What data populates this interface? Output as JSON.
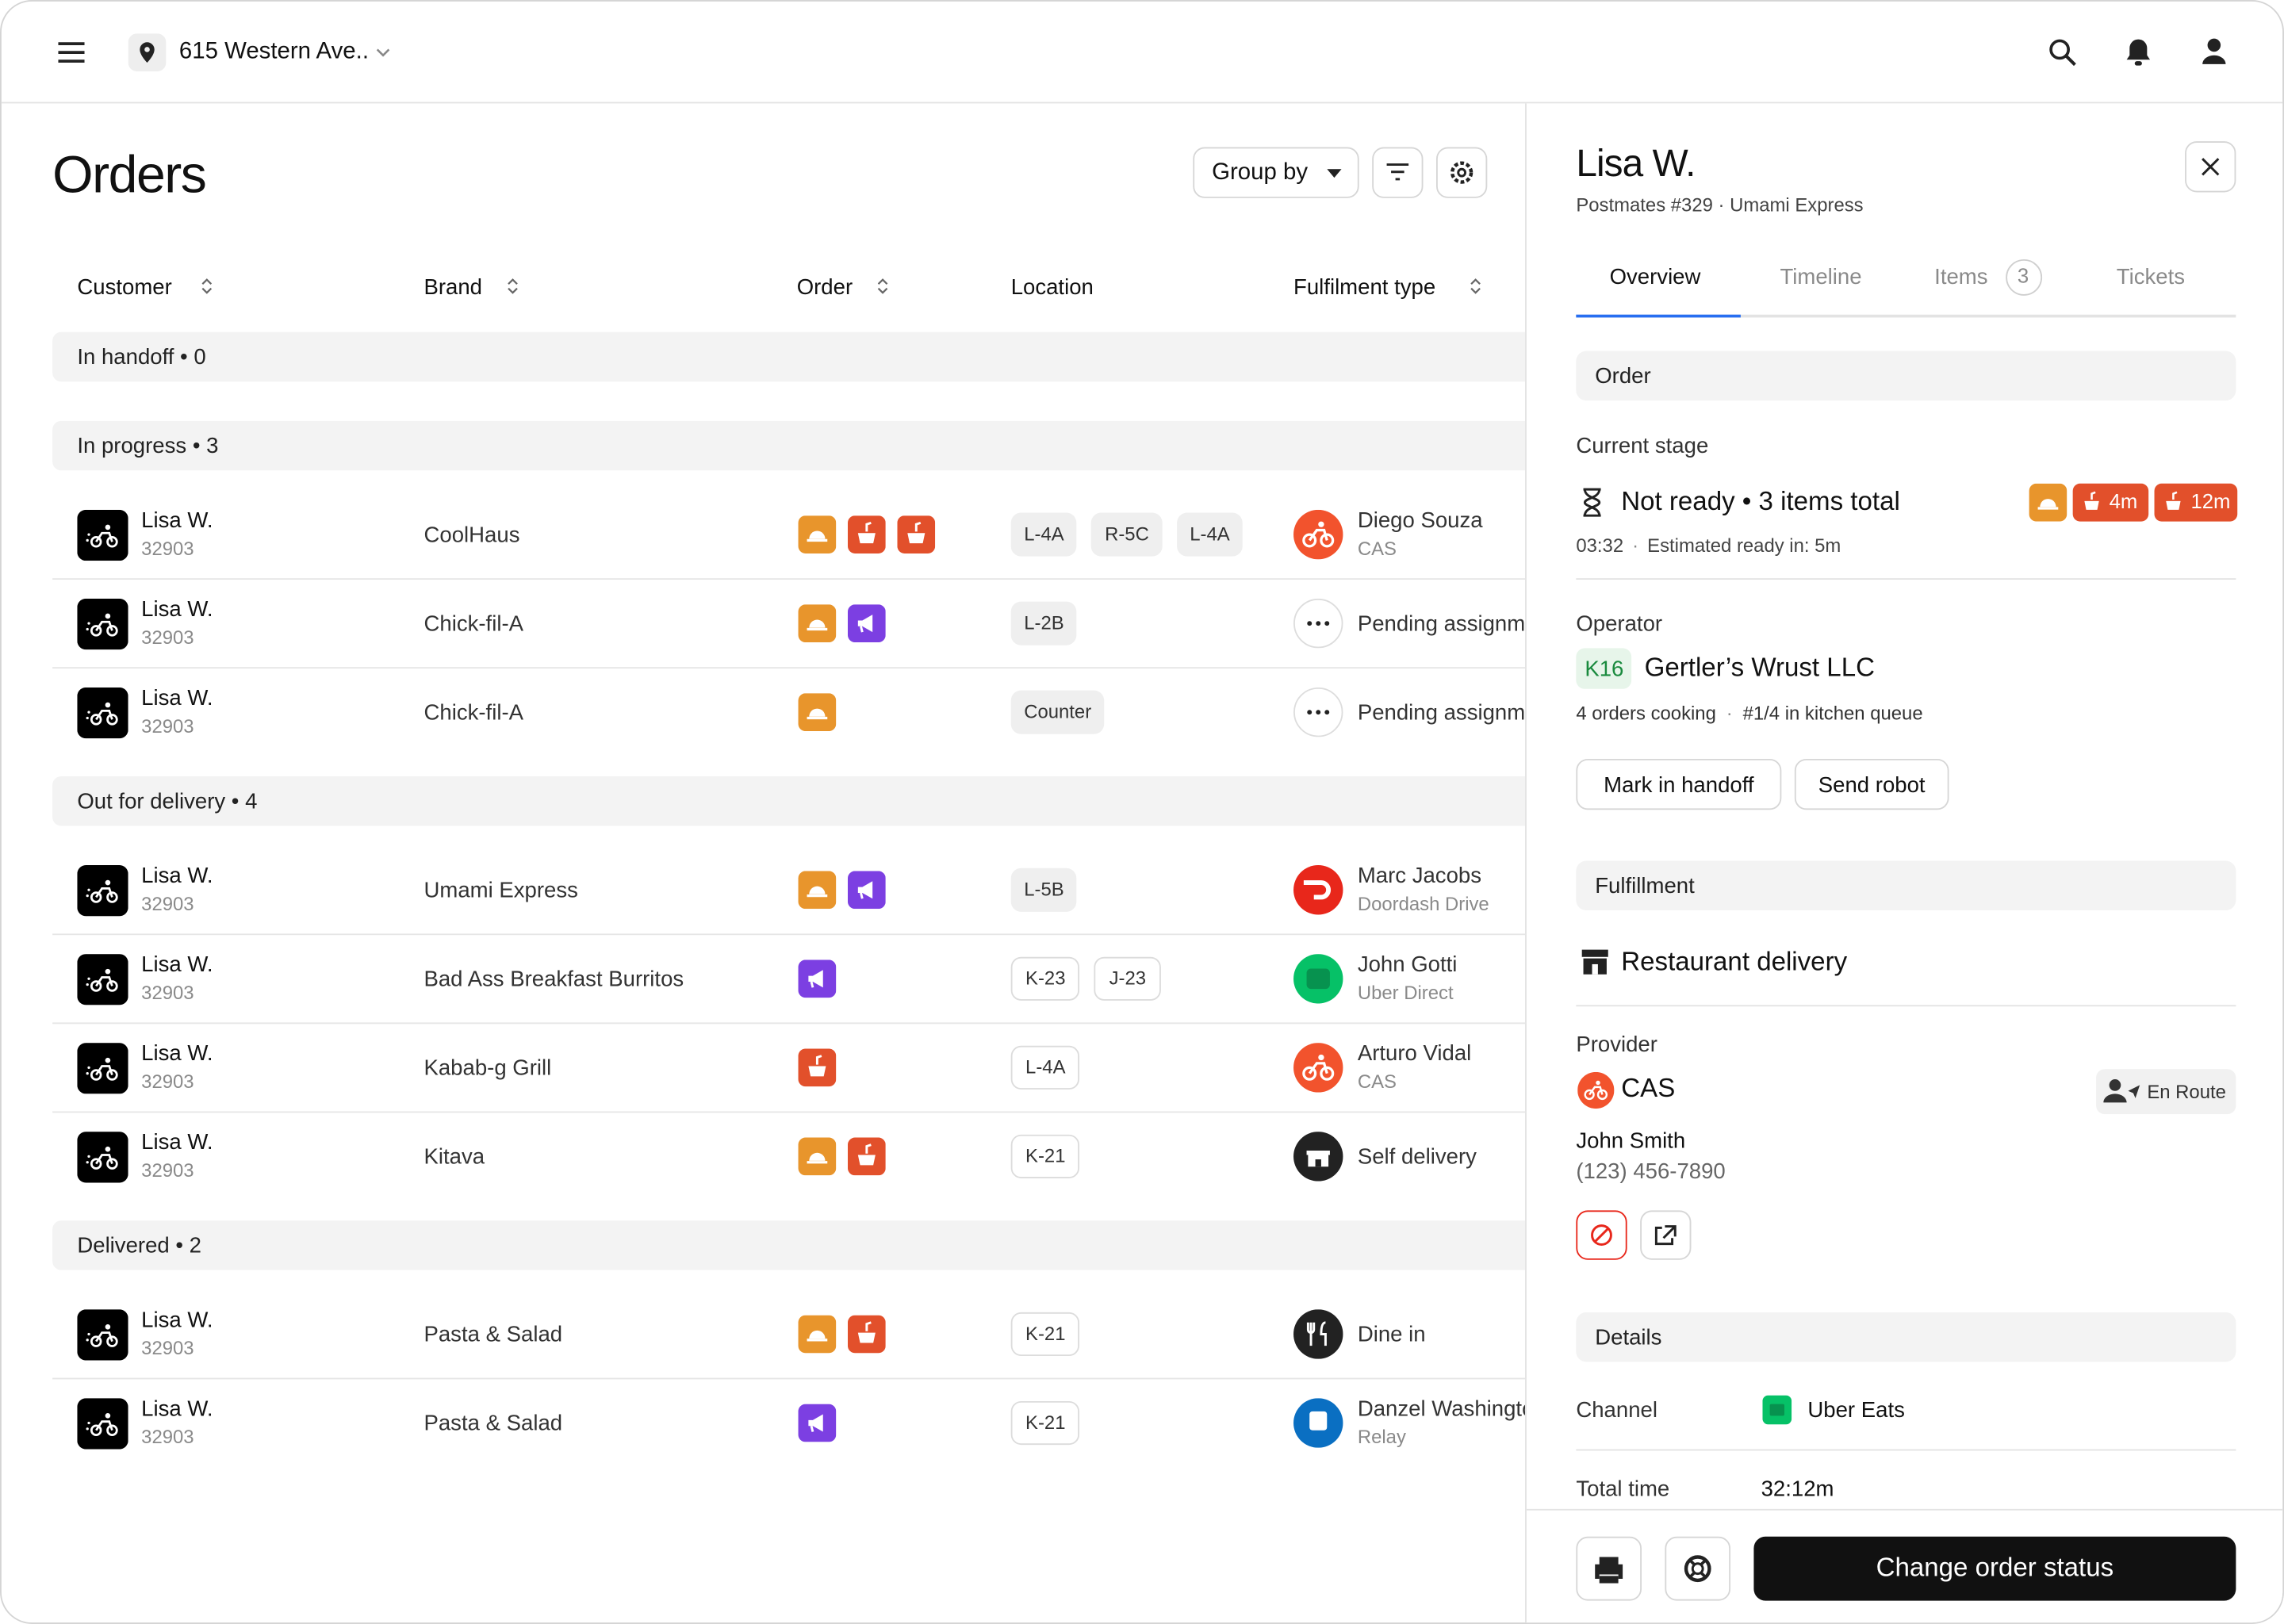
{
  "header": {
    "location": "615 Western Ave.."
  },
  "orders": {
    "title": "Orders",
    "group_by": "Group by",
    "columns": [
      "Customer",
      "Brand",
      "Order",
      "Location",
      "Fulfilment type"
    ],
    "groups": [
      {
        "label": "In handoff • 0",
        "rows": []
      },
      {
        "label": "In progress • 3",
        "rows": [
          {
            "customer": "Lisa W.",
            "id": "32903",
            "brand": "CoolHaus",
            "locations": [
              "L-4A",
              "R-5C",
              "L-4A"
            ],
            "fulfilment": "Diego Souza",
            "provider": "CAS"
          },
          {
            "customer": "Lisa W.",
            "id": "32903",
            "brand": "Chick-fil-A",
            "locations": [
              "L-2B"
            ],
            "fulfilment": "Pending assignment"
          },
          {
            "customer": "Lisa W.",
            "id": "32903",
            "brand": "Chick-fil-A",
            "locations": [
              "Counter"
            ],
            "fulfilment": "Pending assignment"
          }
        ]
      },
      {
        "label": "Out for delivery • 4",
        "rows": [
          {
            "customer": "Lisa W.",
            "id": "32903",
            "brand": "Umami Express",
            "locations": [
              "L-5B"
            ],
            "fulfilment": "Marc Jacobs",
            "provider": "Doordash Drive"
          },
          {
            "customer": "Lisa W.",
            "id": "32903",
            "brand": "Bad Ass Breakfast Burritos",
            "locations": [
              "K-23",
              "J-23"
            ],
            "fulfilment": "John Gotti",
            "provider": "Uber Direct"
          },
          {
            "customer": "Lisa W.",
            "id": "32903",
            "brand": "Kabab-g Grill",
            "locations": [
              "L-4A"
            ],
            "fulfilment": "Arturo Vidal",
            "provider": "CAS"
          },
          {
            "customer": "Lisa W.",
            "id": "32903",
            "brand": "Kitava",
            "locations": [
              "K-21"
            ],
            "fulfilment": "Self delivery"
          }
        ]
      },
      {
        "label": "Delivered • 2",
        "rows": [
          {
            "customer": "Lisa W.",
            "id": "32903",
            "brand": "Pasta & Salad",
            "locations": [
              "K-21"
            ],
            "fulfilment": "Dine in"
          },
          {
            "customer": "Lisa W.",
            "id": "32903",
            "brand": "Pasta & Salad",
            "locations": [
              "K-21"
            ],
            "fulfilment": "Danzel Washington",
            "provider": "Relay"
          }
        ]
      }
    ]
  },
  "panel": {
    "name": "Lisa W.",
    "subtitle": "Postmates #329 · Umami Express",
    "tabs": [
      "Overview",
      "Timeline",
      "Items",
      "Tickets"
    ],
    "items_count": "3",
    "order": {
      "section": "Order",
      "current_stage": "Current stage",
      "status": "Not ready • 3 items total",
      "timers": [
        "4m",
        "12m"
      ],
      "time": "03:32",
      "estimate": "Estimated ready in: 5m",
      "operator_label": "Operator",
      "operator_code": "K16",
      "operator": "Gertler’s Wrust LLC",
      "orders_cooking": "4 orders cooking",
      "queue": "#1/4 in kitchen queue",
      "actions": [
        "Mark in handoff",
        "Send robot"
      ]
    },
    "fulfillment": {
      "section": "Fulfillment",
      "mode": "Restaurant delivery",
      "provider_label": "Provider",
      "provider": "CAS",
      "status": "En Route",
      "courier": "John Smith",
      "phone": "(123) 456-7890"
    },
    "details": {
      "section": "Details",
      "channel_label": "Channel",
      "channel": "Uber Eats",
      "total_time_label": "Total time",
      "total_time": "32:12m"
    },
    "footer": {
      "button": "Change order status"
    }
  }
}
